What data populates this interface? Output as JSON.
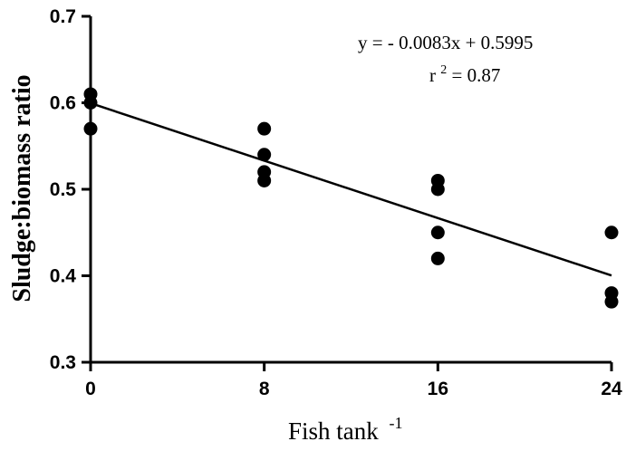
{
  "chart_data": {
    "type": "scatter",
    "xlabel": "Fish tank",
    "xlabel_superscript": "-1",
    "ylabel": "Sludge:biomass ratio",
    "x_ticks": [
      "0",
      "8",
      "16",
      "24"
    ],
    "y_ticks": [
      "0.3",
      "0.4",
      "0.5",
      "0.6",
      "0.7"
    ],
    "xlim": [
      0,
      24
    ],
    "ylim": [
      0.3,
      0.7
    ],
    "grid": false,
    "series": [
      {
        "points": [
          {
            "x": 0,
            "y": 0.61
          },
          {
            "x": 0,
            "y": 0.6
          },
          {
            "x": 0,
            "y": 0.57
          },
          {
            "x": 8,
            "y": 0.57
          },
          {
            "x": 8,
            "y": 0.54
          },
          {
            "x": 8,
            "y": 0.52
          },
          {
            "x": 8,
            "y": 0.51
          },
          {
            "x": 16,
            "y": 0.51
          },
          {
            "x": 16,
            "y": 0.5
          },
          {
            "x": 16,
            "y": 0.45
          },
          {
            "x": 16,
            "y": 0.42
          },
          {
            "x": 24,
            "y": 0.45
          },
          {
            "x": 24,
            "y": 0.38
          },
          {
            "x": 24,
            "y": 0.37
          }
        ]
      }
    ],
    "fit": {
      "slope": -0.0083,
      "intercept": 0.5995,
      "x_range": [
        0,
        24
      ]
    },
    "annotations": {
      "equation": "y = - 0.0083x + 0.5995",
      "r2_prefix": "r",
      "r2_superscript": "2",
      "r2_suffix": " = 0.87"
    }
  }
}
